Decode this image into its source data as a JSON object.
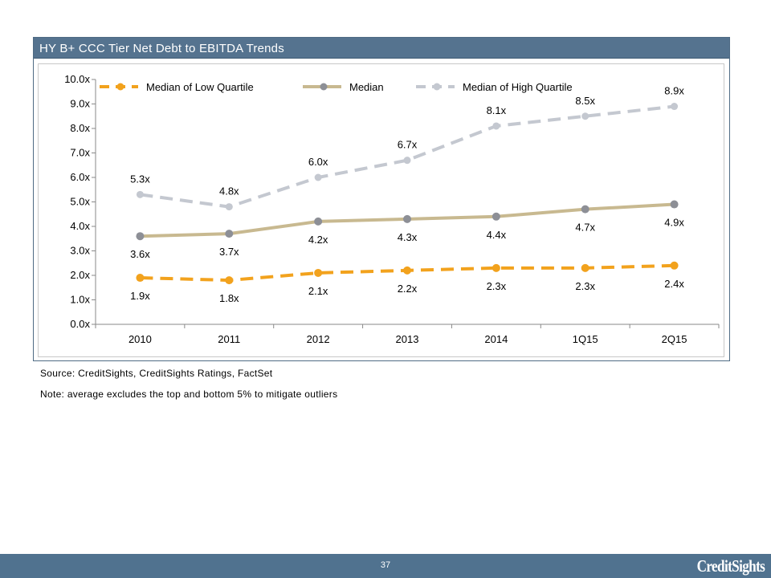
{
  "chart_title": "HY B+ CCC Tier Net Debt to EBITDA Trends",
  "source_note": "Source: CreditSights, CreditSights Ratings, FactSet",
  "footnote": "Note: average excludes the top and bottom 5% to mitigate outliers",
  "footer": {
    "page_number": "37",
    "brand": "CreditSights"
  },
  "chart_data": {
    "type": "line",
    "categories": [
      "2010",
      "2011",
      "2012",
      "2013",
      "2014",
      "1Q15",
      "2Q15"
    ],
    "ylim": [
      0,
      10
    ],
    "yticks": [
      "0.0x",
      "1.0x",
      "2.0x",
      "3.0x",
      "4.0x",
      "5.0x",
      "6.0x",
      "7.0x",
      "8.0x",
      "9.0x",
      "10.0x"
    ],
    "grid": false,
    "legend_position": "top",
    "series": [
      {
        "name": "Median of Low Quartile",
        "color": "#f2a21d",
        "style": "dashed",
        "values": [
          1.9,
          1.8,
          2.1,
          2.2,
          2.3,
          2.3,
          2.4
        ],
        "labels": [
          "1.9x",
          "1.8x",
          "2.1x",
          "2.2x",
          "2.3x",
          "2.3x",
          "2.4x"
        ]
      },
      {
        "name": "Median",
        "color": "#c8b990",
        "marker_color": "#8d8f96",
        "style": "solid",
        "values": [
          3.6,
          3.7,
          4.2,
          4.3,
          4.4,
          4.7,
          4.9
        ],
        "labels": [
          "3.6x",
          "3.7x",
          "4.2x",
          "4.3x",
          "4.4x",
          "4.7x",
          "4.9x"
        ]
      },
      {
        "name": "Median of High Quartile",
        "color": "#c4c8d0",
        "style": "dashed",
        "values": [
          5.3,
          4.8,
          6.0,
          6.7,
          8.1,
          8.5,
          8.9
        ],
        "labels": [
          "5.3x",
          "4.8x",
          "6.0x",
          "6.7x",
          "8.1x",
          "8.5x",
          "8.9x"
        ]
      }
    ]
  }
}
